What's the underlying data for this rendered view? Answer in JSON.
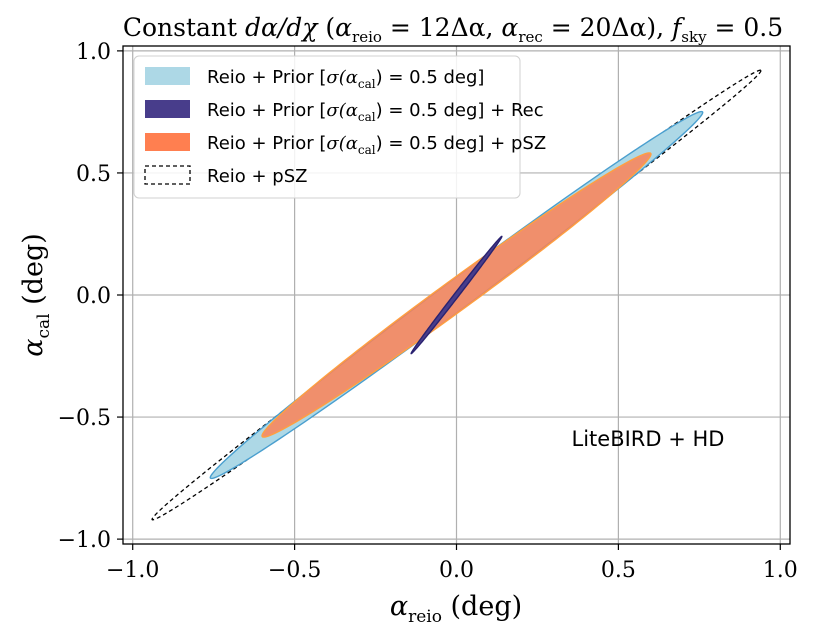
{
  "chart_data": {
    "type": "contour",
    "title": "Constant dα/dχ (α_reio = 12Δα, α_rec = 20Δα), f_sky = 0.5",
    "title_parts": {
      "prefix": "Constant ",
      "dalpha": "dα/dχ",
      "paren_open": " (",
      "alpha": "α",
      "reio_sub": "reio",
      "reio_val": " = 12Δα, ",
      "rec_sub": "rec",
      "rec_val": " = 20Δα), ",
      "f": "f",
      "sky_sub": "sky",
      "sky_val": " = 0.5"
    },
    "xlabel": {
      "sym": "α",
      "sub": "reio",
      "unit": " (deg)"
    },
    "ylabel": {
      "sym": "α",
      "sub": "cal",
      "unit": " (deg)"
    },
    "xlim": [
      -1.03,
      1.03
    ],
    "ylim": [
      -1.02,
      1.02
    ],
    "xticks": [
      -1.0,
      -0.5,
      0.0,
      0.5,
      1.0
    ],
    "yticks": [
      -1.0,
      -0.5,
      0.0,
      0.5,
      1.0
    ],
    "xtick_labels": [
      "−1.0",
      "−0.5",
      "0.0",
      "0.5",
      "1.0"
    ],
    "ytick_labels": [
      "−1.0",
      "−0.5",
      "0.0",
      "0.5",
      "1.0"
    ],
    "grid": true,
    "annotation": "LiteBIRD + HD",
    "series": [
      {
        "name": "Reio + pSZ",
        "legend": "Reio + pSZ",
        "style": "dashed",
        "color": "#000000",
        "tips": [
          [
            0.94,
            0.92
          ],
          [
            -0.94,
            -0.92
          ]
        ],
        "half_width": 0.036
      },
      {
        "name": "Reio + Prior [σ(α_cal) = 0.5 deg]",
        "legend": "Reio + Prior [σ(α_cal) = 0.5 deg]",
        "style": "filled",
        "color": "#add8e6",
        "edge": "#4a9fcf",
        "tips": [
          [
            0.76,
            0.75
          ],
          [
            -0.76,
            -0.75
          ]
        ],
        "half_width": 0.045
      },
      {
        "name": "Reio + Prior [σ(α_cal) = 0.5 deg] + pSZ",
        "legend": "Reio + Prior [σ(α_cal) = 0.5 deg] + pSZ",
        "style": "filled",
        "color": "#ff7f50",
        "edge": "#ff9f40",
        "tips": [
          [
            0.6,
            0.58
          ],
          [
            -0.6,
            -0.58
          ]
        ],
        "half_width": 0.047
      },
      {
        "name": "Reio + Prior [σ(α_cal) = 0.5 deg] + Rec",
        "legend": "Reio + Prior [σ(α_cal) = 0.5 deg] + Rec",
        "style": "filled",
        "color": "#483d8b",
        "edge": "#2a2270",
        "tips": [
          [
            0.14,
            0.24
          ],
          [
            -0.14,
            -0.24
          ]
        ],
        "half_width": 0.007
      }
    ],
    "legend_items": [
      {
        "label_pre": "Reio + Prior [",
        "label_math": "σ(α",
        "label_sub": "cal",
        "label_post": ") = 0.5 deg]",
        "suffix": "",
        "color": "#add8e6",
        "edge": "#add8e6",
        "style": "filled"
      },
      {
        "label_pre": "Reio + Prior [",
        "label_math": "σ(α",
        "label_sub": "cal",
        "label_post": ") = 0.5 deg]",
        "suffix": " + Rec",
        "color": "#483d8b",
        "edge": "#483d8b",
        "style": "filled"
      },
      {
        "label_pre": "Reio + Prior [",
        "label_math": "σ(α",
        "label_sub": "cal",
        "label_post": ") = 0.5 deg]",
        "suffix": " + pSZ",
        "color": "#ff7f50",
        "edge": "#ff7f50",
        "style": "filled"
      },
      {
        "label_pre": "Reio + pSZ",
        "label_math": "",
        "label_sub": "",
        "label_post": "",
        "suffix": "",
        "color": "none",
        "edge": "#000000",
        "style": "dashed"
      }
    ],
    "legend_position": "top-left"
  }
}
